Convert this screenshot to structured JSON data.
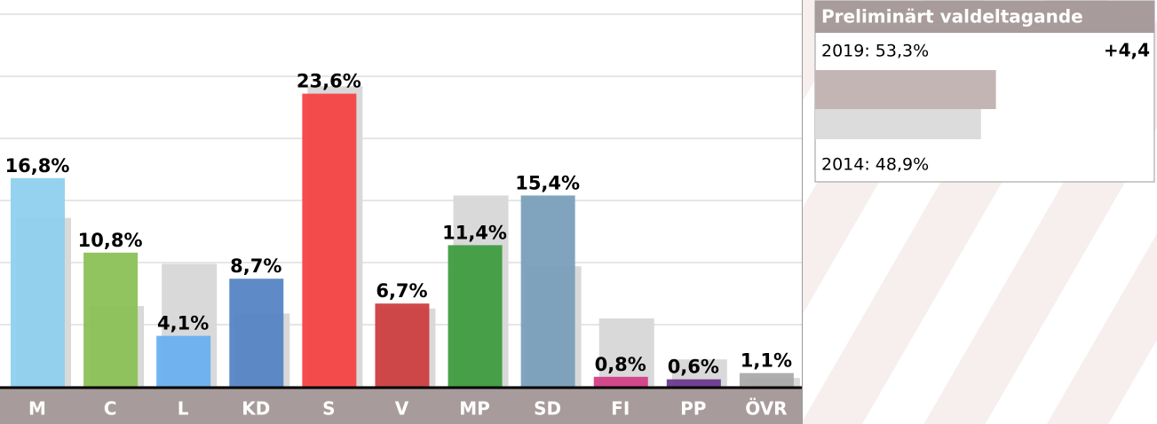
{
  "chart_data": [
    {
      "type": "bar",
      "categories": [
        "M",
        "C",
        "L",
        "KD",
        "S",
        "V",
        "MP",
        "SD",
        "FI",
        "PP",
        "ÖVR"
      ],
      "series": [
        {
          "color": "#d9d9d9",
          "values": [
            13.6,
            6.5,
            9.9,
            5.9,
            24.2,
            6.3,
            15.4,
            9.7,
            5.5,
            2.2,
            0.7
          ]
        },
        {
          "colors": [
            "#8fd0ef",
            "#8bc056",
            "#6aaff0",
            "#5585c5",
            "#f44345",
            "#cc3f41",
            "#3f9c40",
            "#7a9fba",
            "#d33f87",
            "#6b3a8f",
            "#aaaaaa"
          ],
          "values": [
            16.8,
            10.8,
            4.1,
            8.7,
            23.6,
            6.7,
            11.4,
            15.4,
            0.8,
            0.6,
            1.1
          ],
          "value_labels": [
            "16,8%",
            "10,8%",
            "4,1%",
            "8,7%",
            "23,6%",
            "6,7%",
            "11,4%",
            "15,4%",
            "0,8%",
            "0,6%",
            "1,1%"
          ]
        }
      ],
      "ylim": [
        0,
        31
      ],
      "yticks": [
        0,
        5,
        10,
        15,
        20,
        25,
        30
      ],
      "grid": true
    },
    {
      "type": "hbar",
      "title": "Preliminärt valdeltagande",
      "categories": [
        "2019",
        "2014"
      ],
      "values": [
        53.3,
        48.9
      ],
      "value_labels": [
        "2019: 53,3%",
        "2014: 48,9%"
      ],
      "colors": [
        "#c4b5b5",
        "#dcdcdc"
      ],
      "xlim": [
        0,
        100
      ],
      "annotation": "+4,4"
    }
  ]
}
